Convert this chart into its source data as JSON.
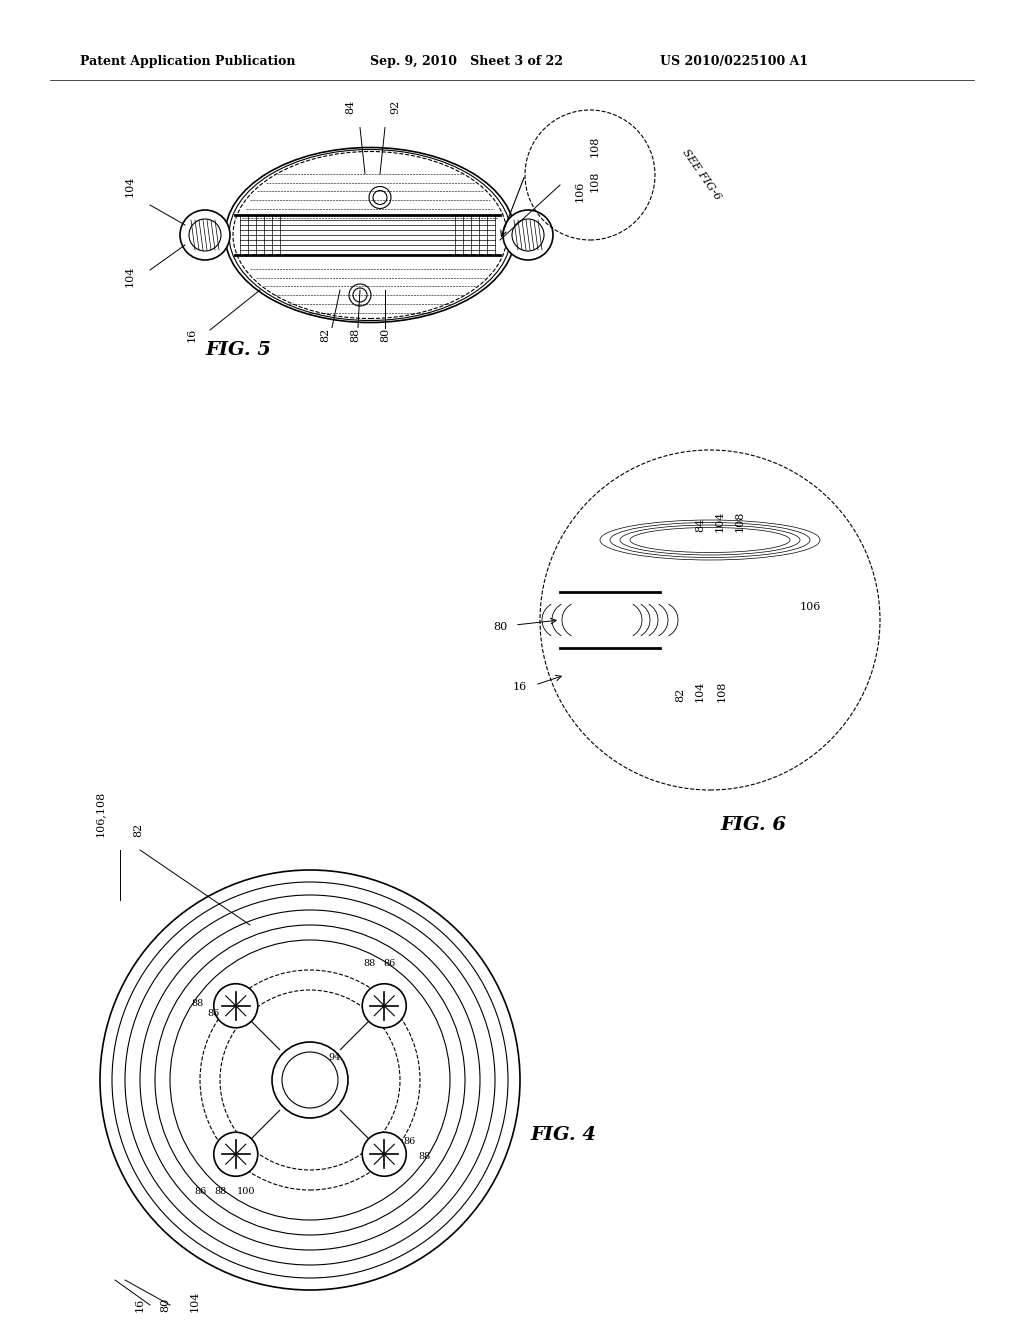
{
  "bg_color": "#ffffff",
  "text_color": "#000000",
  "header_left": "Patent Application Publication",
  "header_mid": "Sep. 9, 2010   Sheet 3 of 22",
  "header_right": "US 2010/0225100 A1",
  "fig5_label": "FIG. 5",
  "fig6_label": "FIG. 6",
  "fig4_label": "FIG. 4"
}
